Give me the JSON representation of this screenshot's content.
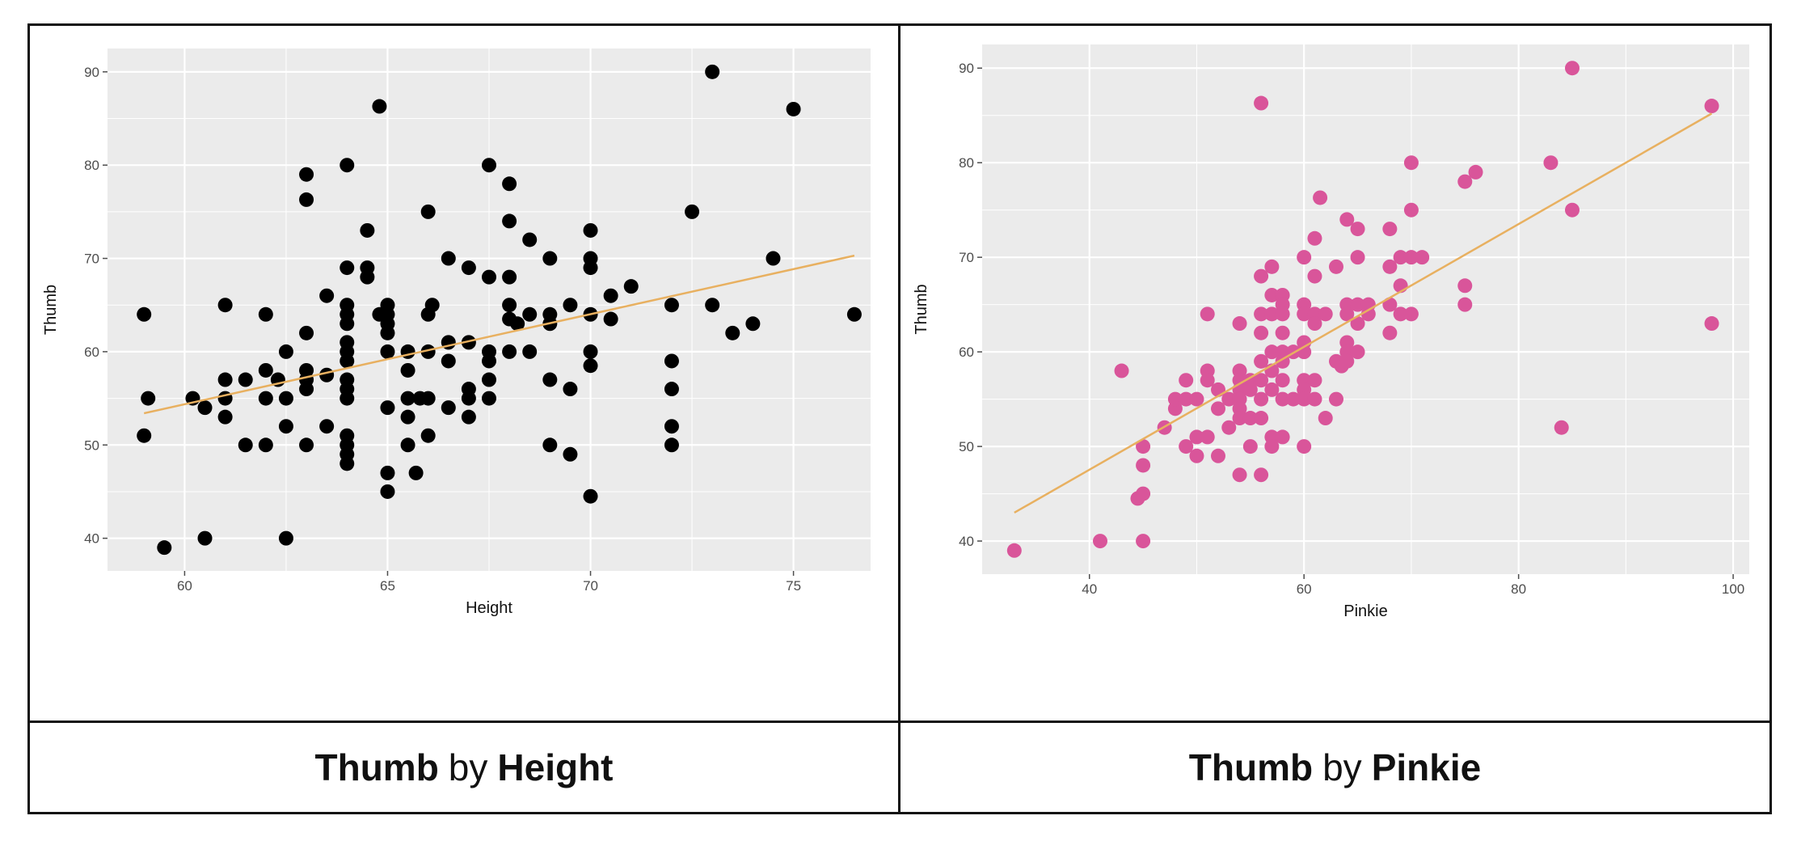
{
  "captions": [
    {
      "bold1": "Thumb",
      "mid": "by",
      "bold2": "Height"
    },
    {
      "bold1": "Thumb",
      "mid": "by",
      "bold2": "Pinkie"
    }
  ],
  "colors": {
    "points_left": "#000000",
    "points_right": "#d9559a",
    "fit_line": "#e8b060",
    "panel_bg": "#ebebeb",
    "grid": "#ffffff"
  },
  "chart_data": [
    {
      "type": "scatter",
      "title": "",
      "xlabel": "Height",
      "ylabel": "Thumb",
      "xlim": [
        58.1,
        76.9
      ],
      "ylim": [
        36.5,
        92.5
      ],
      "xticks": [
        60,
        65,
        70,
        75
      ],
      "yticks": [
        40,
        50,
        60,
        70,
        80,
        90
      ],
      "grid": true,
      "trend_line": {
        "x": [
          59.0,
          76.5
        ],
        "y": [
          53.4,
          70.3
        ]
      },
      "points": [
        [
          59,
          64
        ],
        [
          59,
          51
        ],
        [
          59.1,
          55
        ],
        [
          59.5,
          39
        ],
        [
          60.2,
          55
        ],
        [
          60.5,
          54
        ],
        [
          60.5,
          40
        ],
        [
          61,
          65
        ],
        [
          61,
          57
        ],
        [
          61,
          55
        ],
        [
          61,
          53
        ],
        [
          61.5,
          57
        ],
        [
          61.5,
          50
        ],
        [
          62,
          64
        ],
        [
          62,
          58
        ],
        [
          62,
          55
        ],
        [
          62,
          50
        ],
        [
          62.3,
          57
        ],
        [
          62.5,
          60
        ],
        [
          62.5,
          55
        ],
        [
          62.5,
          52
        ],
        [
          62.5,
          40
        ],
        [
          63,
          79
        ],
        [
          63,
          76.3
        ],
        [
          63,
          62
        ],
        [
          63,
          58
        ],
        [
          63,
          57
        ],
        [
          63,
          56
        ],
        [
          63,
          50
        ],
        [
          63.5,
          52
        ],
        [
          63.5,
          57.5
        ],
        [
          63.5,
          66
        ],
        [
          64,
          80
        ],
        [
          64,
          69
        ],
        [
          64,
          65
        ],
        [
          64,
          64
        ],
        [
          64,
          63
        ],
        [
          64,
          61
        ],
        [
          64,
          60
        ],
        [
          64,
          59
        ],
        [
          64,
          57
        ],
        [
          64,
          56
        ],
        [
          64,
          55
        ],
        [
          64,
          51
        ],
        [
          64,
          50
        ],
        [
          64,
          49
        ],
        [
          64,
          48
        ],
        [
          64.5,
          73
        ],
        [
          64.5,
          69
        ],
        [
          64.5,
          68
        ],
        [
          64.8,
          86.3
        ],
        [
          64.8,
          64
        ],
        [
          65,
          65
        ],
        [
          65,
          64
        ],
        [
          65,
          63
        ],
        [
          65,
          62
        ],
        [
          65,
          60
        ],
        [
          65,
          54
        ],
        [
          65,
          47
        ],
        [
          65,
          45
        ],
        [
          65.5,
          58
        ],
        [
          65.5,
          55
        ],
        [
          65.5,
          53
        ],
        [
          65.5,
          50
        ],
        [
          65.5,
          60
        ],
        [
          65.7,
          47
        ],
        [
          65.8,
          55
        ],
        [
          66,
          75
        ],
        [
          66,
          64
        ],
        [
          66,
          60
        ],
        [
          66,
          55
        ],
        [
          66,
          51
        ],
        [
          66.1,
          65
        ],
        [
          66.5,
          70
        ],
        [
          66.5,
          61
        ],
        [
          66.5,
          59
        ],
        [
          66.5,
          54
        ],
        [
          67,
          69
        ],
        [
          67,
          61
        ],
        [
          67,
          56
        ],
        [
          67,
          55
        ],
        [
          67,
          53
        ],
        [
          67.5,
          80
        ],
        [
          67.5,
          68
        ],
        [
          67.5,
          60
        ],
        [
          67.5,
          59
        ],
        [
          67.5,
          57
        ],
        [
          67.5,
          55
        ],
        [
          68,
          78
        ],
        [
          68,
          74
        ],
        [
          68,
          68
        ],
        [
          68,
          65
        ],
        [
          68,
          63.5
        ],
        [
          68,
          60
        ],
        [
          68.2,
          63
        ],
        [
          68.5,
          72
        ],
        [
          68.5,
          64
        ],
        [
          68.5,
          60
        ],
        [
          69,
          70
        ],
        [
          69,
          64
        ],
        [
          69,
          63
        ],
        [
          69,
          57
        ],
        [
          69,
          50
        ],
        [
          69.5,
          65
        ],
        [
          69.5,
          56
        ],
        [
          69.5,
          49
        ],
        [
          70,
          73
        ],
        [
          70,
          70
        ],
        [
          70,
          69
        ],
        [
          70,
          64
        ],
        [
          70,
          60
        ],
        [
          70,
          58.5
        ],
        [
          70,
          44.5
        ],
        [
          70.5,
          66
        ],
        [
          70.5,
          63.5
        ],
        [
          71,
          67
        ],
        [
          72,
          65
        ],
        [
          72,
          59
        ],
        [
          72,
          56
        ],
        [
          72,
          52
        ],
        [
          72,
          50
        ],
        [
          72.5,
          75
        ],
        [
          73,
          90
        ],
        [
          73,
          65
        ],
        [
          73.5,
          62
        ],
        [
          74,
          63
        ],
        [
          74.5,
          70
        ],
        [
          75,
          86
        ],
        [
          76.5,
          64
        ]
      ]
    },
    {
      "type": "scatter",
      "title": "",
      "xlabel": "Pinkie",
      "ylabel": "Thumb",
      "xlim": [
        30,
        101.5
      ],
      "ylim": [
        36.5,
        92.5
      ],
      "xticks": [
        40,
        60,
        80,
        100
      ],
      "yticks": [
        40,
        50,
        60,
        70,
        80,
        90
      ],
      "grid": true,
      "trend_line": {
        "x": [
          33.0,
          98.0
        ],
        "y": [
          43.0,
          85.2
        ]
      },
      "points": [
        [
          33,
          39
        ],
        [
          41,
          40
        ],
        [
          43,
          58
        ],
        [
          44.5,
          44.5
        ],
        [
          45,
          45
        ],
        [
          45,
          50
        ],
        [
          45,
          48
        ],
        [
          45,
          40
        ],
        [
          47,
          52
        ],
        [
          48,
          54
        ],
        [
          48,
          55
        ],
        [
          49,
          57
        ],
        [
          49,
          55
        ],
        [
          49,
          50
        ],
        [
          50,
          55
        ],
        [
          50,
          51
        ],
        [
          50,
          49
        ],
        [
          51,
          64
        ],
        [
          51,
          58
        ],
        [
          51,
          57
        ],
        [
          51,
          51
        ],
        [
          52,
          56
        ],
        [
          52,
          54
        ],
        [
          52,
          49
        ],
        [
          53,
          55
        ],
        [
          53,
          52
        ],
        [
          54,
          63
        ],
        [
          54,
          58
        ],
        [
          54,
          57
        ],
        [
          54,
          56
        ],
        [
          54,
          55
        ],
        [
          54,
          54
        ],
        [
          54,
          53
        ],
        [
          54,
          47
        ],
        [
          55,
          57
        ],
        [
          55,
          56
        ],
        [
          55,
          53
        ],
        [
          55,
          50
        ],
        [
          56,
          86.3
        ],
        [
          56,
          68
        ],
        [
          56,
          64
        ],
        [
          56,
          62
        ],
        [
          56,
          59
        ],
        [
          56,
          57
        ],
        [
          56,
          55
        ],
        [
          56,
          53
        ],
        [
          56,
          47
        ],
        [
          57,
          69
        ],
        [
          57,
          66
        ],
        [
          57,
          64
        ],
        [
          57,
          60
        ],
        [
          57,
          58
        ],
        [
          57,
          56
        ],
        [
          57,
          51
        ],
        [
          57,
          50
        ],
        [
          58,
          66
        ],
        [
          58,
          65
        ],
        [
          58,
          64
        ],
        [
          58,
          62
        ],
        [
          58,
          60
        ],
        [
          58,
          59
        ],
        [
          58,
          57
        ],
        [
          58,
          55
        ],
        [
          58,
          51
        ],
        [
          59,
          60
        ],
        [
          59,
          55
        ],
        [
          60,
          70
        ],
        [
          60,
          65
        ],
        [
          60,
          64
        ],
        [
          60,
          61
        ],
        [
          60,
          60
        ],
        [
          60,
          57
        ],
        [
          60,
          56
        ],
        [
          60,
          55
        ],
        [
          60,
          50
        ],
        [
          61,
          72
        ],
        [
          61,
          68
        ],
        [
          61,
          64
        ],
        [
          61,
          63
        ],
        [
          61,
          57
        ],
        [
          61,
          55
        ],
        [
          61.5,
          76.3
        ],
        [
          62,
          64
        ],
        [
          62,
          53
        ],
        [
          63,
          69
        ],
        [
          63,
          59
        ],
        [
          63,
          55
        ],
        [
          63.5,
          58.5
        ],
        [
          64,
          74
        ],
        [
          64,
          65
        ],
        [
          64,
          64
        ],
        [
          64,
          61
        ],
        [
          64,
          60
        ],
        [
          64,
          59
        ],
        [
          65,
          73
        ],
        [
          65,
          70
        ],
        [
          65,
          65
        ],
        [
          65,
          63
        ],
        [
          65,
          60
        ],
        [
          66,
          65
        ],
        [
          66,
          64
        ],
        [
          68,
          73
        ],
        [
          68,
          69
        ],
        [
          68,
          65
        ],
        [
          68,
          62
        ],
        [
          69,
          70
        ],
        [
          69,
          67
        ],
        [
          69,
          64
        ],
        [
          70,
          80
        ],
        [
          70,
          75
        ],
        [
          70,
          70
        ],
        [
          70,
          64
        ],
        [
          71,
          70
        ],
        [
          75,
          78
        ],
        [
          75,
          67
        ],
        [
          75,
          65
        ],
        [
          76,
          79
        ],
        [
          83,
          80
        ],
        [
          84,
          52
        ],
        [
          85,
          90
        ],
        [
          85,
          75
        ],
        [
          98,
          86
        ],
        [
          98,
          63
        ]
      ]
    }
  ]
}
